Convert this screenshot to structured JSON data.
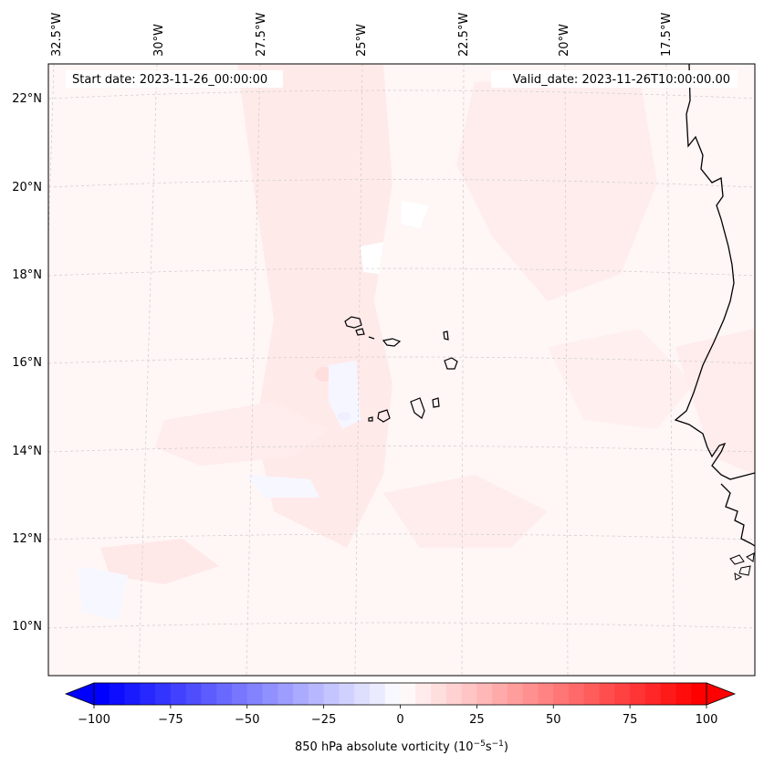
{
  "header": {
    "start_date": "Start date: 2023-11-26_00:00:00",
    "valid_date": "Valid_date: 2023-11-26T10:00:00.00"
  },
  "longitude_labels": [
    "32.5°W",
    "30°W",
    "27.5°W",
    "25°W",
    "22.5°W",
    "20°W",
    "17.5°W"
  ],
  "latitude_labels": [
    "22°N",
    "20°N",
    "18°N",
    "16°N",
    "14°N",
    "12°N",
    "10°N"
  ],
  "colorbar": {
    "label": "850 hPa absolute vorticity (10",
    "label_exp1": "−5",
    "label_mid": "s",
    "label_exp2": "−1",
    "label_end": ")",
    "ticks": [
      "−100",
      "−75",
      "−50",
      "−25",
      "0",
      "25",
      "50",
      "75",
      "100"
    ],
    "min": -100,
    "max": 100,
    "step": 5,
    "colors": {
      "negative": "#0000ff",
      "zero": "#ffffff",
      "positive": "#ff0000"
    }
  },
  "map": {
    "coastline_color": "#000000",
    "gridline_color": "#cccccc",
    "background_tint": "#fff6f6"
  }
}
